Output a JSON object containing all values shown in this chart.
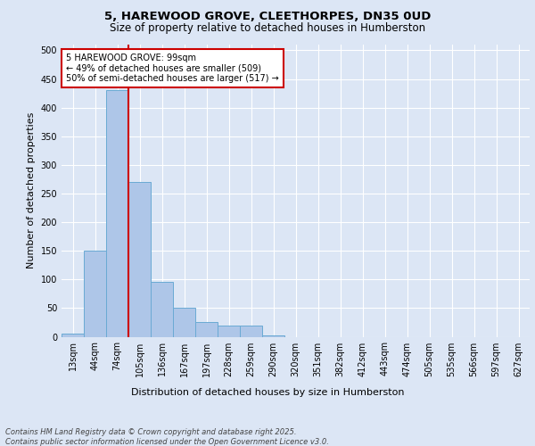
{
  "title_line1": "5, HAREWOOD GROVE, CLEETHORPES, DN35 0UD",
  "title_line2": "Size of property relative to detached houses in Humberston",
  "xlabel": "Distribution of detached houses by size in Humberston",
  "ylabel": "Number of detached properties",
  "categories": [
    "13sqm",
    "44sqm",
    "74sqm",
    "105sqm",
    "136sqm",
    "167sqm",
    "197sqm",
    "228sqm",
    "259sqm",
    "290sqm",
    "320sqm",
    "351sqm",
    "382sqm",
    "412sqm",
    "443sqm",
    "474sqm",
    "505sqm",
    "535sqm",
    "566sqm",
    "597sqm",
    "627sqm"
  ],
  "values": [
    5,
    150,
    430,
    270,
    95,
    50,
    25,
    20,
    20,
    3,
    0,
    0,
    0,
    0,
    0,
    0,
    0,
    0,
    0,
    0,
    0
  ],
  "bar_color": "#aec6e8",
  "bar_edge_color": "#6aaad4",
  "red_line_x": 2.5,
  "annotation_text": "5 HAREWOOD GROVE: 99sqm\n← 49% of detached houses are smaller (509)\n50% of semi-detached houses are larger (517) →",
  "annotation_box_color": "#ffffff",
  "annotation_box_edge": "#cc0000",
  "red_line_color": "#cc0000",
  "footnote": "Contains HM Land Registry data © Crown copyright and database right 2025.\nContains public sector information licensed under the Open Government Licence v3.0.",
  "ylim": [
    0,
    510
  ],
  "yticks": [
    0,
    50,
    100,
    150,
    200,
    250,
    300,
    350,
    400,
    450,
    500
  ],
  "background_color": "#dce6f5",
  "plot_background": "#dce6f5",
  "grid_color": "#ffffff",
  "title_fontsize": 9.5,
  "subtitle_fontsize": 8.5,
  "tick_fontsize": 7,
  "label_fontsize": 8,
  "annotation_fontsize": 7,
  "footnote_fontsize": 6
}
